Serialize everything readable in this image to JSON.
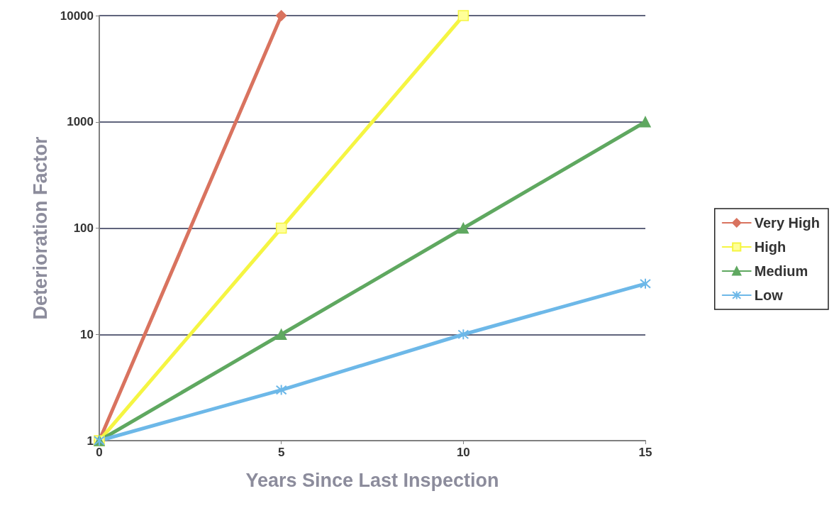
{
  "chart_data": {
    "type": "line",
    "xlabel": "Years Since Last Inspection",
    "ylabel": "Deterioration Factor",
    "xlim": [
      0,
      15
    ],
    "xticks": [
      0,
      5,
      10,
      15
    ],
    "ylim": [
      1,
      10000
    ],
    "yticks": [
      1,
      10,
      100,
      1000,
      10000
    ],
    "log": "y",
    "grid": "y",
    "legend": "right",
    "series": [
      {
        "name": "Very High",
        "color": "#d9735f",
        "marker": "diamond",
        "x": [
          0,
          5
        ],
        "values": [
          1,
          10000
        ]
      },
      {
        "name": "High",
        "color": "#f5f542",
        "marker": "square",
        "x": [
          0,
          5,
          10
        ],
        "values": [
          1,
          100,
          10000
        ]
      },
      {
        "name": "Medium",
        "color": "#5fa860",
        "marker": "triangle",
        "x": [
          0,
          5,
          10,
          15
        ],
        "values": [
          1,
          10,
          100,
          1000
        ]
      },
      {
        "name": "Low",
        "color": "#6db8e8",
        "marker": "cross",
        "x": [
          0,
          5,
          10,
          15
        ],
        "values": [
          1,
          3,
          10,
          30
        ]
      }
    ]
  }
}
